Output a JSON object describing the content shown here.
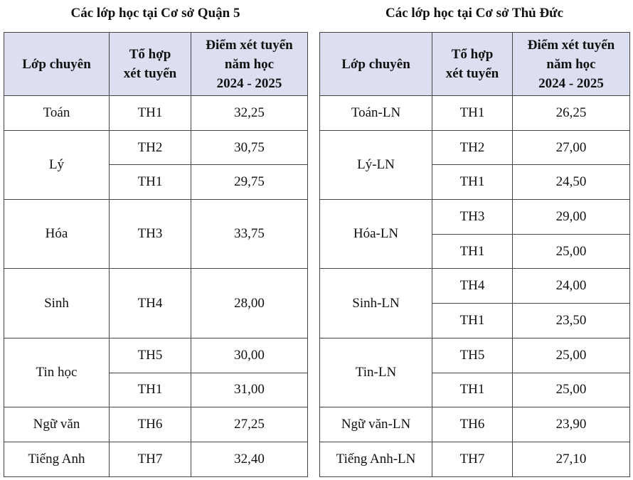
{
  "tables": [
    {
      "title": "Các lớp học tại Cơ sở Quận 5",
      "header": [
        [
          "Lớp chuyên"
        ],
        [
          "Tổ hợp",
          "xét tuyển"
        ],
        [
          "Điểm xét tuyển",
          "năm học",
          "2024 - 2025"
        ]
      ],
      "groups": [
        {
          "name": "Toán",
          "rows": [
            [
              "TH1",
              "32,25"
            ]
          ]
        },
        {
          "name": "Lý",
          "rows": [
            [
              "TH2",
              "30,75"
            ],
            [
              "TH1",
              "29,75"
            ]
          ]
        },
        {
          "name": "Hóa",
          "rows": [
            [
              "TH3",
              "33,75"
            ]
          ]
        },
        {
          "name": "Sinh",
          "rows": [
            [
              "TH4",
              "28,00"
            ]
          ]
        },
        {
          "name": "Tin học",
          "rows": [
            [
              "TH5",
              "30,00"
            ],
            [
              "TH1",
              "31,00"
            ]
          ]
        },
        {
          "name": "Ngữ văn",
          "rows": [
            [
              "TH6",
              "27,25"
            ]
          ]
        },
        {
          "name": "Tiếng Anh",
          "rows": [
            [
              "TH7",
              "32,40"
            ]
          ]
        }
      ]
    },
    {
      "title": "Các lớp học tại Cơ sở Thủ Đức",
      "header": [
        [
          "Lớp chuyên"
        ],
        [
          "Tổ hợp",
          "xét tuyển"
        ],
        [
          "Điểm xét tuyển",
          "năm học",
          "2024 - 2025"
        ]
      ],
      "groups": [
        {
          "name": "Toán-LN",
          "rows": [
            [
              "TH1",
              "26,25"
            ]
          ]
        },
        {
          "name": "Lý-LN",
          "rows": [
            [
              "TH2",
              "27,00"
            ],
            [
              "TH1",
              "24,50"
            ]
          ]
        },
        {
          "name": "Hóa-LN",
          "rows": [
            [
              "TH3",
              "29,00"
            ],
            [
              "TH1",
              "25,00"
            ]
          ]
        },
        {
          "name": "Sinh-LN",
          "rows": [
            [
              "TH4",
              "24,00"
            ],
            [
              "TH1",
              "23,50"
            ]
          ]
        },
        {
          "name": "Tin-LN",
          "rows": [
            [
              "TH5",
              "25,00"
            ],
            [
              "TH1",
              "25,00"
            ]
          ]
        },
        {
          "name": "Ngữ văn-LN",
          "rows": [
            [
              "TH6",
              "23,90"
            ]
          ]
        },
        {
          "name": "Tiếng Anh-LN",
          "rows": [
            [
              "TH7",
              "27,10"
            ]
          ]
        }
      ]
    }
  ]
}
